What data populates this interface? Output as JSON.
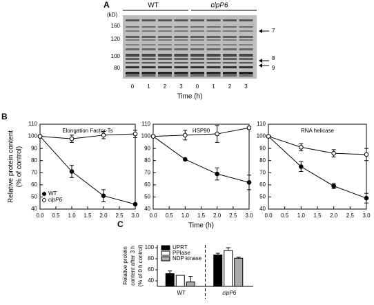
{
  "panel_a": {
    "label": "A",
    "unit": "(kD)",
    "markers": [
      "160",
      "120",
      "100",
      "80"
    ],
    "groups": [
      "WT",
      "clpP6"
    ],
    "lanes": [
      "0",
      "1",
      "2",
      "3",
      "0",
      "1",
      "2",
      "3"
    ],
    "xlabel": "Time (h)",
    "arrows": [
      "7",
      "8",
      "9"
    ]
  },
  "panel_b_label": "B",
  "panel_c_label": "C",
  "chart_data": [
    {
      "type": "line",
      "title": "Elongation Factor-Ts",
      "ylabel": "Relative protein content",
      "ylabel2": "(% of control)",
      "x": [
        0,
        1,
        2,
        3
      ],
      "series": [
        {
          "name": "WT",
          "color": "#000000",
          "fill": "#000000",
          "font_style": "normal",
          "values": [
            100,
            71,
            51,
            44
          ],
          "errors": [
            0,
            5,
            5,
            0
          ]
        },
        {
          "name": "clpP6",
          "color": "#000000",
          "fill": "#ffffff",
          "font_style": "italic",
          "values": [
            100,
            98,
            101,
            102
          ],
          "errors": [
            0,
            3,
            3,
            3
          ]
        }
      ],
      "legend": "lower left",
      "xlim": [
        0,
        3
      ],
      "xticks": [
        {
          "value": 0,
          "label": "0.0"
        },
        {
          "value": 0.5,
          "label": "0.5"
        },
        {
          "value": 1,
          "label": "1.0"
        },
        {
          "value": 1.5,
          "label": "1.5"
        },
        {
          "value": 2,
          "label": "2.0"
        },
        {
          "value": 2.5,
          "label": "2.5"
        },
        {
          "value": 3,
          "label": "3.0"
        }
      ],
      "ylim": [
        40,
        110
      ],
      "yticks": [
        40,
        50,
        60,
        70,
        80,
        90,
        100,
        110
      ]
    },
    {
      "type": "line",
      "title": "HSP90",
      "xlabel": "Time (h)",
      "x": [
        0,
        1,
        2,
        3
      ],
      "series": [
        {
          "name": "WT",
          "color": "#000000",
          "fill": "#000000",
          "values": [
            100,
            81,
            69,
            62
          ],
          "errors": [
            0,
            0,
            5,
            6
          ]
        },
        {
          "name": "clpP6",
          "color": "#000000",
          "fill": "#ffffff",
          "values": [
            100,
            101,
            102,
            107
          ],
          "errors": [
            0,
            4,
            7,
            1
          ]
        }
      ],
      "xlim": [
        0,
        3
      ],
      "xticks": [
        {
          "value": 0,
          "label": "0.0"
        },
        {
          "value": 0.5,
          "label": "0.5"
        },
        {
          "value": 1,
          "label": "1.0"
        },
        {
          "value": 1.5,
          "label": "1.5"
        },
        {
          "value": 2,
          "label": "2.0"
        },
        {
          "value": 2.5,
          "label": "2.5"
        },
        {
          "value": 3,
          "label": "3.0"
        }
      ],
      "ylim": [
        40,
        110
      ],
      "yticks": [
        40,
        50,
        60,
        70,
        80,
        90,
        100,
        110
      ]
    },
    {
      "type": "line",
      "title": "RNA helicase",
      "x": [
        0,
        1,
        2,
        3
      ],
      "series": [
        {
          "name": "WT",
          "color": "#000000",
          "fill": "#000000",
          "values": [
            100,
            75,
            59,
            49
          ],
          "errors": [
            0,
            4,
            2,
            4
          ]
        },
        {
          "name": "clpP6",
          "color": "#000000",
          "fill": "#ffffff",
          "values": [
            100,
            91,
            86,
            85
          ],
          "errors": [
            0,
            3,
            3,
            5
          ]
        }
      ],
      "xlim": [
        0,
        3
      ],
      "xticks": [
        {
          "value": 0,
          "label": "0.0"
        },
        {
          "value": 0.5,
          "label": "0.5"
        },
        {
          "value": 1,
          "label": "1.0"
        },
        {
          "value": 1.5,
          "label": "1.5"
        },
        {
          "value": 2,
          "label": "2.0"
        },
        {
          "value": 2.5,
          "label": "2.5"
        },
        {
          "value": 3,
          "label": "3.0"
        }
      ],
      "ylim": [
        40,
        110
      ],
      "yticks": [
        40,
        50,
        60,
        70,
        80,
        90,
        100,
        110
      ]
    },
    {
      "type": "bar",
      "ylabel": [
        "Relative protein",
        "content after 3 h",
        "(% of 0 h control)"
      ],
      "categories": [
        "WT",
        "clpP6"
      ],
      "category_styles": [
        "normal",
        "italic"
      ],
      "series": [
        {
          "name": "UPRT",
          "color": "#000000",
          "values": [
            53,
            87
          ],
          "errors": [
            5,
            3
          ]
        },
        {
          "name": "PPIase",
          "color": "#ffffff",
          "values": [
            50,
            95
          ],
          "errors": [
            0,
            5
          ]
        },
        {
          "name": "NDP kinase",
          "color": "#aaaaaa",
          "values": [
            38,
            81
          ],
          "errors": [
            10,
            2
          ]
        }
      ],
      "legend": "upper left",
      "ylim": [
        30,
        105
      ],
      "yticks": [
        40,
        60,
        80,
        100
      ]
    }
  ]
}
